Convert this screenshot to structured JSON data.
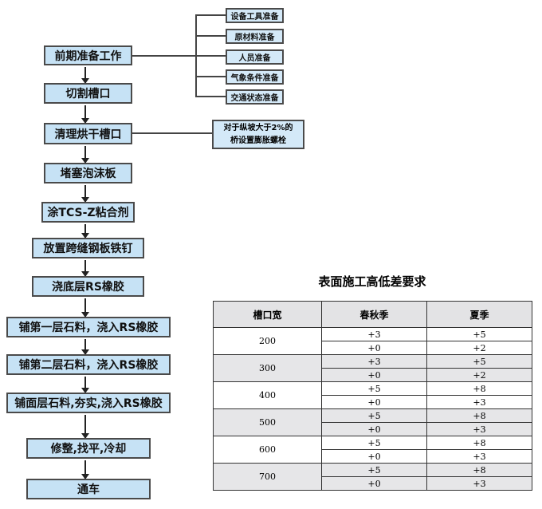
{
  "flow": {
    "steps": [
      "前期准备工作",
      "切割槽口",
      "清理烘干槽口",
      "堵塞泡沫板",
      "涂TCS-Z粘合剂",
      "放置跨缝钢板铁钉",
      "浇底层RS橡胶",
      "铺第一层石料，浇入RS橡胶",
      "铺第二层石料，浇入RS橡胶",
      "铺面层石料,夯实,浇入RS橡胶",
      "修整,找平,冷却",
      "通车"
    ],
    "prep_items": [
      "设备工具准备",
      "原材料准备",
      "人员准备",
      "气象条件准备",
      "交通状态准备"
    ],
    "note_line1": "对于纵坡大于2%的",
    "note_line2": "桥设置膨胀螺栓",
    "box_color": "#c6e2f5"
  },
  "table": {
    "title": "表面施工高低差要求",
    "headers": [
      "槽口宽",
      "春秋季",
      "夏季"
    ],
    "rows": [
      {
        "width": "200",
        "spring": [
          "+3",
          "+0"
        ],
        "summer": [
          "+5",
          "+2"
        ]
      },
      {
        "width": "300",
        "spring": [
          "+3",
          "+0"
        ],
        "summer": [
          "+5",
          "+2"
        ]
      },
      {
        "width": "400",
        "spring": [
          "+5",
          "+0"
        ],
        "summer": [
          "+8",
          "+3"
        ]
      },
      {
        "width": "500",
        "spring": [
          "+5",
          "+0"
        ],
        "summer": [
          "+8",
          "+3"
        ]
      },
      {
        "width": "600",
        "spring": [
          "+5",
          "+0"
        ],
        "summer": [
          "+8",
          "+3"
        ]
      },
      {
        "width": "700",
        "spring": [
          "+5",
          "+0"
        ],
        "summer": [
          "+8",
          "+3"
        ]
      }
    ]
  }
}
